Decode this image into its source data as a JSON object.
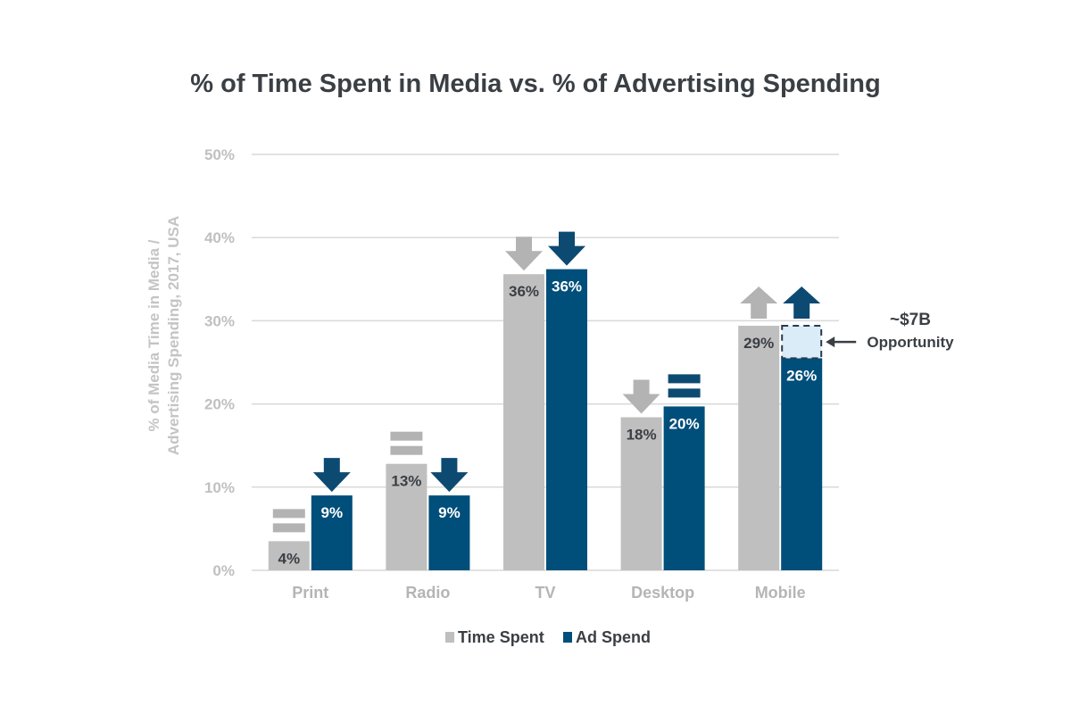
{
  "title": "% of Time Spent in Media vs. % of Advertising Spending",
  "colors": {
    "time_spent": "#bfbfbf",
    "ad_spend": "#004e7a",
    "opportunity_fill": "#d9ecf8",
    "trend_time": "#b3b3b3",
    "trend_ad": "#0d4a72"
  },
  "chart_data": {
    "type": "bar",
    "title": "% of Time Spent in Media vs. % of Advertising Spending",
    "ylabel": "% of Media Time in Media / Advertising Spending, 2017, USA",
    "ylabel_lines": [
      "% of Media Time in Media /",
      "Advertising Spending, 2017, USA"
    ],
    "xlabel": "",
    "ylim": [
      0,
      50
    ],
    "yticks": [
      0,
      10,
      20,
      30,
      40,
      50
    ],
    "ytick_labels": [
      "0%",
      "10%",
      "20%",
      "30%",
      "40%",
      "50%"
    ],
    "grid": true,
    "legend_position": "bottom",
    "categories": [
      "Print",
      "Radio",
      "TV",
      "Desktop",
      "Mobile"
    ],
    "series": [
      {
        "name": "Time Spent",
        "values": [
          3.5,
          12.8,
          35.6,
          18.4,
          29.4
        ],
        "labels": [
          "4%",
          "13%",
          "36%",
          "18%",
          "29%"
        ],
        "trend_icons": [
          "equal",
          "equal",
          "down",
          "down",
          "up"
        ]
      },
      {
        "name": "Ad Spend",
        "values": [
          9,
          9,
          36.2,
          19.7,
          25.5
        ],
        "labels": [
          "9%",
          "9%",
          "36%",
          "20%",
          "26%"
        ],
        "trend_icons": [
          "down",
          "down",
          "down",
          "equal",
          "up"
        ]
      }
    ],
    "annotation": {
      "category": "Mobile",
      "range": [
        25.5,
        29.4
      ],
      "value_text": "~$7B",
      "label_text": "Opportunity"
    }
  }
}
